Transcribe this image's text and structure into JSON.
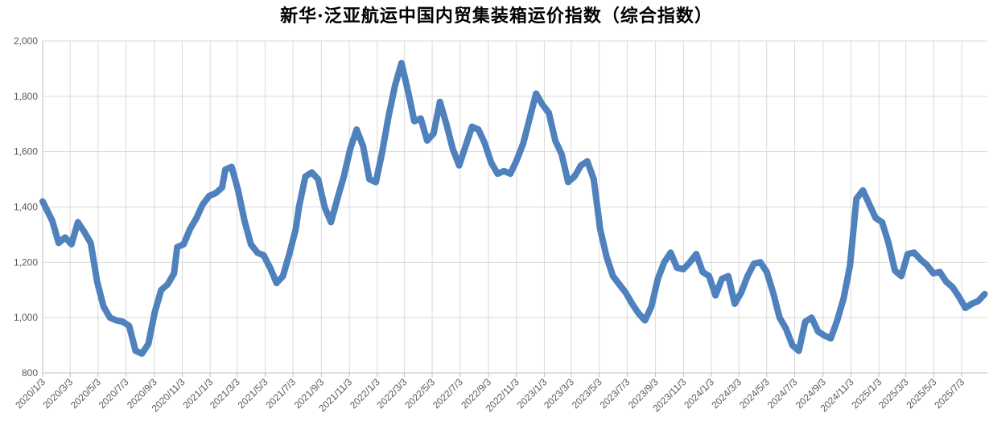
{
  "chart_data": {
    "type": "line",
    "title": "新华·泛亚航运中国内贸集装箱运价指数（综合指数）",
    "xlabel": "",
    "ylabel": "",
    "ylim": [
      800,
      2000
    ],
    "yticks": [
      800,
      1000,
      1200,
      1400,
      1600,
      1800,
      2000
    ],
    "ytick_labels": [
      "800",
      "1,000",
      "1,200",
      "1,400",
      "1,600",
      "1,800",
      "2,000"
    ],
    "x_tick_labels": [
      "2020/1/3",
      "2020/3/3",
      "2020/5/3",
      "2020/7/3",
      "2020/9/3",
      "2020/11/3",
      "2021/1/3",
      "2021/3/3",
      "2021/5/3",
      "2021/7/3",
      "2021/9/3",
      "2021/11/3",
      "2022/1/3",
      "2022/3/3",
      "2022/5/3",
      "2022/7/3",
      "2022/9/3",
      "2022/11/3",
      "2023/1/3",
      "2023/3/3",
      "2023/5/3",
      "2023/7/3",
      "2023/9/3",
      "2023/11/3",
      "2024/1/3",
      "2024/3/3",
      "2024/5/3",
      "2024/7/3",
      "2024/9/3",
      "2024/11/3",
      "2025/1/3",
      "2025/3/3",
      "2025/5/3",
      "2025/7/3"
    ],
    "grid": true,
    "legend": "none",
    "line_color": "#4F81BD",
    "series": [
      {
        "points": [
          [
            "2020/1/3",
            1420
          ],
          [
            "2020/1/24",
            1350
          ],
          [
            "2020/2/7",
            1270
          ],
          [
            "2020/2/21",
            1290
          ],
          [
            "2020/3/6",
            1265
          ],
          [
            "2020/3/20",
            1345
          ],
          [
            "2020/4/3",
            1310
          ],
          [
            "2020/4/17",
            1270
          ],
          [
            "2020/5/1",
            1130
          ],
          [
            "2020/5/15",
            1040
          ],
          [
            "2020/5/29",
            1000
          ],
          [
            "2020/6/12",
            990
          ],
          [
            "2020/6/26",
            985
          ],
          [
            "2020/7/10",
            970
          ],
          [
            "2020/7/24",
            880
          ],
          [
            "2020/8/7",
            870
          ],
          [
            "2020/8/21",
            905
          ],
          [
            "2020/9/4",
            1020
          ],
          [
            "2020/9/18",
            1100
          ],
          [
            "2020/10/2",
            1120
          ],
          [
            "2020/10/16",
            1160
          ],
          [
            "2020/10/23",
            1255
          ],
          [
            "2020/11/6",
            1265
          ],
          [
            "2020/11/20",
            1320
          ],
          [
            "2020/12/4",
            1360
          ],
          [
            "2020/12/18",
            1410
          ],
          [
            "2021/1/1",
            1440
          ],
          [
            "2021/1/15",
            1450
          ],
          [
            "2021/1/29",
            1470
          ],
          [
            "2021/2/5",
            1535
          ],
          [
            "2021/2/19",
            1545
          ],
          [
            "2021/3/5",
            1460
          ],
          [
            "2021/3/19",
            1350
          ],
          [
            "2021/4/2",
            1265
          ],
          [
            "2021/4/16",
            1235
          ],
          [
            "2021/4/30",
            1225
          ],
          [
            "2021/5/14",
            1180
          ],
          [
            "2021/5/28",
            1125
          ],
          [
            "2021/6/11",
            1150
          ],
          [
            "2021/6/25",
            1230
          ],
          [
            "2021/7/9",
            1320
          ],
          [
            "2021/7/16",
            1400
          ],
          [
            "2021/7/30",
            1510
          ],
          [
            "2021/8/13",
            1525
          ],
          [
            "2021/8/27",
            1500
          ],
          [
            "2021/9/10",
            1400
          ],
          [
            "2021/9/24",
            1345
          ],
          [
            "2021/10/8",
            1430
          ],
          [
            "2021/10/22",
            1510
          ],
          [
            "2021/11/5",
            1610
          ],
          [
            "2021/11/19",
            1680
          ],
          [
            "2021/12/3",
            1620
          ],
          [
            "2021/12/17",
            1500
          ],
          [
            "2021/12/31",
            1490
          ],
          [
            "2022/1/14",
            1600
          ],
          [
            "2022/1/28",
            1730
          ],
          [
            "2022/2/11",
            1840
          ],
          [
            "2022/2/25",
            1920
          ],
          [
            "2022/3/11",
            1820
          ],
          [
            "2022/3/25",
            1710
          ],
          [
            "2022/4/8",
            1720
          ],
          [
            "2022/4/22",
            1640
          ],
          [
            "2022/5/6",
            1665
          ],
          [
            "2022/5/20",
            1780
          ],
          [
            "2022/6/3",
            1700
          ],
          [
            "2022/6/17",
            1610
          ],
          [
            "2022/7/1",
            1550
          ],
          [
            "2022/7/15",
            1620
          ],
          [
            "2022/7/29",
            1690
          ],
          [
            "2022/8/12",
            1680
          ],
          [
            "2022/8/26",
            1630
          ],
          [
            "2022/9/9",
            1560
          ],
          [
            "2022/9/23",
            1520
          ],
          [
            "2022/10/7",
            1530
          ],
          [
            "2022/10/21",
            1520
          ],
          [
            "2022/11/4",
            1570
          ],
          [
            "2022/11/18",
            1630
          ],
          [
            "2022/12/2",
            1720
          ],
          [
            "2022/12/16",
            1810
          ],
          [
            "2022/12/30",
            1770
          ],
          [
            "2023/1/13",
            1740
          ],
          [
            "2023/1/27",
            1640
          ],
          [
            "2023/2/10",
            1590
          ],
          [
            "2023/2/24",
            1490
          ],
          [
            "2023/3/10",
            1510
          ],
          [
            "2023/3/24",
            1550
          ],
          [
            "2023/4/7",
            1565
          ],
          [
            "2023/4/21",
            1500
          ],
          [
            "2023/5/5",
            1320
          ],
          [
            "2023/5/19",
            1220
          ],
          [
            "2023/6/2",
            1150
          ],
          [
            "2023/6/16",
            1120
          ],
          [
            "2023/6/30",
            1090
          ],
          [
            "2023/7/14",
            1050
          ],
          [
            "2023/7/28",
            1015
          ],
          [
            "2023/8/11",
            990
          ],
          [
            "2023/8/25",
            1040
          ],
          [
            "2023/9/8",
            1140
          ],
          [
            "2023/9/22",
            1200
          ],
          [
            "2023/10/6",
            1235
          ],
          [
            "2023/10/20",
            1180
          ],
          [
            "2023/11/3",
            1175
          ],
          [
            "2023/11/17",
            1200
          ],
          [
            "2023/12/1",
            1230
          ],
          [
            "2023/12/15",
            1165
          ],
          [
            "2023/12/29",
            1150
          ],
          [
            "2024/1/12",
            1080
          ],
          [
            "2024/1/26",
            1140
          ],
          [
            "2024/2/9",
            1150
          ],
          [
            "2024/2/23",
            1050
          ],
          [
            "2024/3/8",
            1090
          ],
          [
            "2024/3/22",
            1150
          ],
          [
            "2024/4/5",
            1195
          ],
          [
            "2024/4/19",
            1200
          ],
          [
            "2024/5/3",
            1165
          ],
          [
            "2024/5/17",
            1090
          ],
          [
            "2024/5/31",
            1000
          ],
          [
            "2024/6/14",
            960
          ],
          [
            "2024/6/28",
            900
          ],
          [
            "2024/7/12",
            880
          ],
          [
            "2024/7/26",
            985
          ],
          [
            "2024/8/9",
            1000
          ],
          [
            "2024/8/23",
            950
          ],
          [
            "2024/9/6",
            935
          ],
          [
            "2024/9/20",
            925
          ],
          [
            "2024/10/4",
            990
          ],
          [
            "2024/10/18",
            1070
          ],
          [
            "2024/11/1",
            1190
          ],
          [
            "2024/11/15",
            1430
          ],
          [
            "2024/11/29",
            1460
          ],
          [
            "2024/12/13",
            1410
          ],
          [
            "2024/12/27",
            1360
          ],
          [
            "2025/1/10",
            1345
          ],
          [
            "2025/1/24",
            1270
          ],
          [
            "2025/2/7",
            1170
          ],
          [
            "2025/2/21",
            1150
          ],
          [
            "2025/3/7",
            1230
          ],
          [
            "2025/3/21",
            1235
          ],
          [
            "2025/4/4",
            1210
          ],
          [
            "2025/4/18",
            1190
          ],
          [
            "2025/5/2",
            1160
          ],
          [
            "2025/5/16",
            1165
          ],
          [
            "2025/5/30",
            1130
          ],
          [
            "2025/6/13",
            1110
          ],
          [
            "2025/6/27",
            1075
          ],
          [
            "2025/7/11",
            1035
          ],
          [
            "2025/7/25",
            1050
          ],
          [
            "2025/8/8",
            1060
          ],
          [
            "2025/8/22",
            1085
          ]
        ]
      }
    ]
  }
}
